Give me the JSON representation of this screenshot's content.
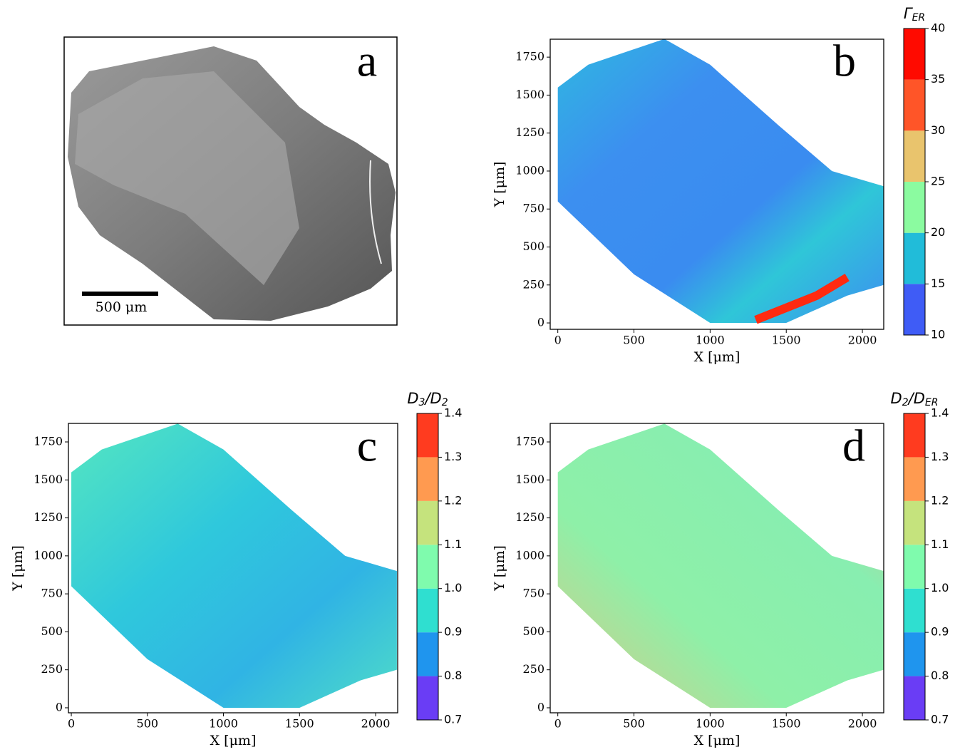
{
  "chart_data": [
    {
      "type": "image",
      "panel_label": "a",
      "scale_label": "500 μm"
    },
    {
      "type": "heatmap",
      "panel_label": "b",
      "xlabel": "X [μm]",
      "ylabel": "Y [μm]",
      "xlim": [
        -50,
        2140
      ],
      "ylim": [
        -42,
        1868
      ],
      "xticks": [
        0,
        500,
        1000,
        1500,
        2000
      ],
      "yticks": [
        0,
        250,
        500,
        750,
        1000,
        1250,
        1500,
        1750
      ],
      "colorbar": {
        "label": [
          {
            "text": "Γ"
          },
          {
            "sub": "ER"
          }
        ],
        "lim": [
          10,
          40
        ],
        "ticks": [
          10,
          15,
          20,
          25,
          30,
          35,
          40
        ],
        "colors": [
          "#3f5cf6",
          "#21bcd9",
          "#8bfba0",
          "#e9c46d",
          "#ff5528",
          "#ff0a00"
        ]
      }
    },
    {
      "type": "heatmap",
      "panel_label": "c",
      "xlabel": "X [μm]",
      "ylabel": "Y [μm]",
      "xlim": [
        -19,
        2145
      ],
      "ylim": [
        -33,
        1872
      ],
      "xticks": [
        0,
        500,
        1000,
        1500,
        2000
      ],
      "yticks": [
        0,
        250,
        500,
        750,
        1000,
        1250,
        1500,
        1750
      ],
      "colorbar": {
        "label": [
          {
            "text": "D"
          },
          {
            "sub": "3"
          },
          {
            "text": "/D"
          },
          {
            "sub": "2"
          }
        ],
        "lim": [
          0.7,
          1.4
        ],
        "ticks": [
          0.7,
          0.8,
          0.9,
          {
            "value": 1,
            "label": "1.0"
          },
          1.1,
          1.2,
          1.3,
          1.4
        ],
        "colors": [
          "#6a3df5",
          "#1f95ee",
          "#2fdfd0",
          "#7ffbad",
          "#c5e37d",
          "#ff9a50",
          "#ff3b1f"
        ]
      }
    },
    {
      "type": "heatmap",
      "panel_label": "d",
      "xlabel": "X [μm]",
      "ylabel": "Y [μm]",
      "xlim": [
        -50,
        2140
      ],
      "ylim": [
        -33,
        1872
      ],
      "xticks": [
        0,
        500,
        1000,
        1500,
        2000
      ],
      "yticks": [
        0,
        250,
        500,
        750,
        1000,
        1250,
        1500,
        1750
      ],
      "colorbar": {
        "label": [
          {
            "text": "D"
          },
          {
            "sub": "2"
          },
          {
            "text": "/D"
          },
          {
            "sub": "ER"
          }
        ],
        "lim": [
          0.7,
          1.4
        ],
        "ticks": [
          0.7,
          0.8,
          0.9,
          {
            "value": 1,
            "label": "1.0"
          },
          1.1,
          1.2,
          1.3,
          1.4
        ],
        "colors": [
          "#6a3df5",
          "#1f95ee",
          "#2fdfd0",
          "#7ffbad",
          "#c5e37d",
          "#ff9a50",
          "#ff3b1f"
        ]
      }
    }
  ]
}
